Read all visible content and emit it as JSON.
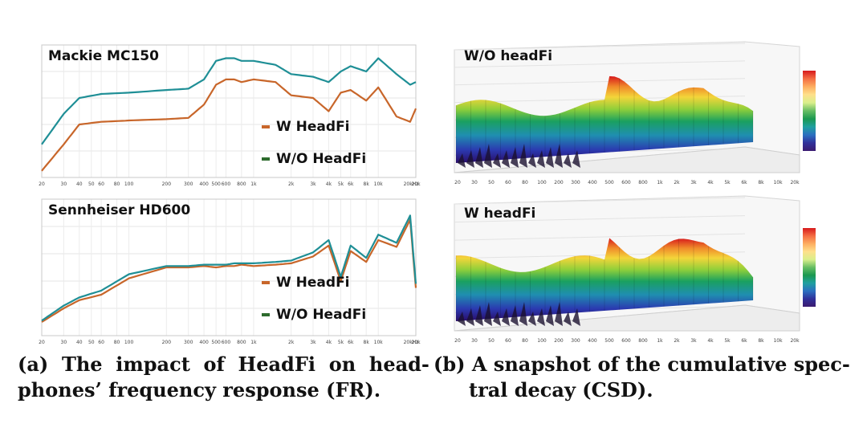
{
  "panel_a": {
    "mackie": {
      "title": "Mackie MC150",
      "legend_w": "W HeadFi",
      "legend_wo": "W/O HeadFi"
    },
    "sennheiser": {
      "title": "Sennheiser HD600",
      "legend_w": "W HeadFi",
      "legend_wo": "W/O HeadFi"
    },
    "x_ticks": [
      "20",
      "30",
      "40",
      "50",
      "60",
      "80",
      "100",
      "200",
      "300",
      "400",
      "500",
      "600",
      "800",
      "1k",
      "2k",
      "3k",
      "4k",
      "5k",
      "6k",
      "8k",
      "10k",
      "20k",
      "20kHz"
    ],
    "colors": {
      "with": "#c8662a",
      "without": "#1f8f96"
    },
    "caption_line1": "(a)  The  impact  of  HeadFi  on  head-",
    "caption_line2": "phones’ frequency response (FR)."
  },
  "panel_b": {
    "top": {
      "title": "W/O headFi"
    },
    "bottom": {
      "title": "W headFi"
    },
    "x_ticks": [
      "20",
      "30",
      "50",
      "60",
      "80",
      "100",
      "200",
      "300",
      "400",
      "500",
      "600",
      "800",
      "1k",
      "2k",
      "3k",
      "4k",
      "5k",
      "6k",
      "8k",
      "10k",
      "20k"
    ],
    "caption_line1": "(b) A snapshot of the cumulative spec-",
    "caption_line2": "tral decay (CSD)."
  },
  "chart_data": [
    {
      "type": "line",
      "title": "Mackie MC150",
      "x": [
        20,
        30,
        40,
        60,
        100,
        200,
        300,
        400,
        500,
        600,
        700,
        800,
        1000,
        1500,
        2000,
        3000,
        4000,
        5000,
        6000,
        8000,
        10000,
        14000,
        18000,
        20000
      ],
      "series": [
        {
          "name": "W HeadFi",
          "values": [
            0.05,
            0.25,
            0.4,
            0.42,
            0.43,
            0.44,
            0.45,
            0.55,
            0.7,
            0.74,
            0.74,
            0.72,
            0.74,
            0.72,
            0.62,
            0.6,
            0.5,
            0.64,
            0.66,
            0.58,
            0.68,
            0.46,
            0.42,
            0.52
          ]
        },
        {
          "name": "W/O HeadFi",
          "values": [
            0.25,
            0.48,
            0.6,
            0.63,
            0.64,
            0.66,
            0.67,
            0.74,
            0.88,
            0.9,
            0.9,
            0.88,
            0.88,
            0.85,
            0.78,
            0.76,
            0.72,
            0.8,
            0.84,
            0.8,
            0.9,
            0.78,
            0.7,
            0.72
          ]
        }
      ]
    },
    {
      "type": "line",
      "title": "Sennheiser HD600",
      "x": [
        20,
        30,
        40,
        60,
        100,
        200,
        300,
        400,
        500,
        600,
        700,
        800,
        1000,
        1500,
        2000,
        3000,
        4000,
        5000,
        6000,
        8000,
        10000,
        14000,
        18000,
        20000
      ],
      "series": [
        {
          "name": "W HeadFi",
          "values": [
            0.1,
            0.2,
            0.26,
            0.3,
            0.42,
            0.5,
            0.5,
            0.51,
            0.5,
            0.51,
            0.51,
            0.52,
            0.51,
            0.52,
            0.53,
            0.58,
            0.66,
            0.4,
            0.62,
            0.54,
            0.7,
            0.65,
            0.85,
            0.35
          ]
        },
        {
          "name": "W/O HeadFi",
          "values": [
            0.11,
            0.22,
            0.28,
            0.33,
            0.45,
            0.51,
            0.51,
            0.52,
            0.52,
            0.52,
            0.53,
            0.53,
            0.53,
            0.54,
            0.55,
            0.61,
            0.7,
            0.43,
            0.66,
            0.57,
            0.74,
            0.68,
            0.88,
            0.38
          ]
        }
      ]
    }
  ]
}
